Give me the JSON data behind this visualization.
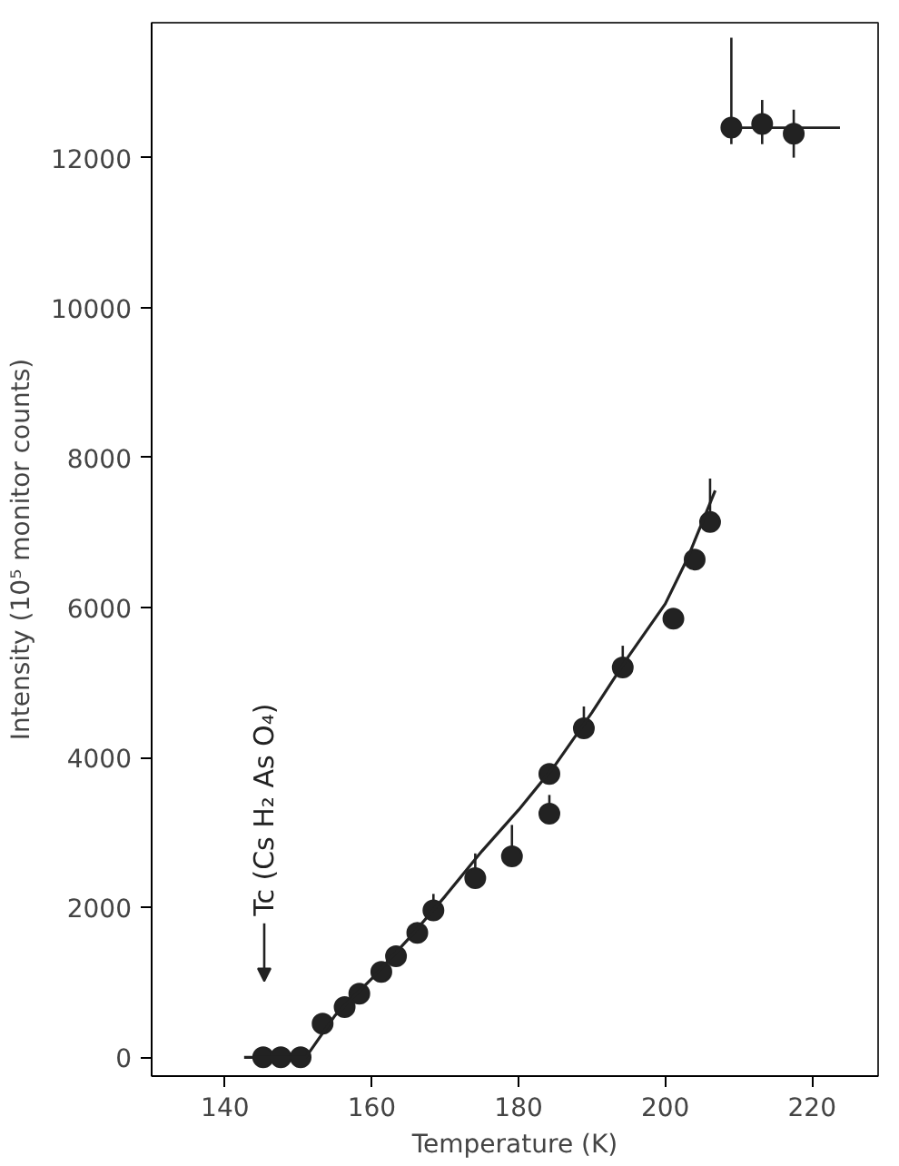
{
  "chart_data": {
    "type": "scatter",
    "xlabel": "Temperature (K)",
    "ylabel": "Intensity (10⁵ monitor counts)",
    "xlim": [
      130,
      229
    ],
    "ylim": [
      -250,
      13800
    ],
    "xticks": [
      140,
      160,
      180,
      200,
      220
    ],
    "yticks": [
      0,
      2000,
      4000,
      6000,
      8000,
      10000,
      12000
    ],
    "grid": false,
    "marker": "circle",
    "annotations": [
      "Tc (Cs H₂ As O₄)"
    ],
    "series": [
      {
        "color": "#222222",
        "x": [
          145.2,
          147.6,
          150.3,
          153.3,
          156.3,
          158.3,
          161.3,
          163.3,
          166.2,
          168.4,
          174.1,
          179.1,
          184.2,
          184.2,
          188.9,
          194.2,
          201.1,
          204.0,
          206.1,
          209.0,
          213.2,
          217.5
        ],
        "values": [
          0,
          0,
          0,
          450,
          670,
          850,
          1140,
          1350,
          1660,
          1960,
          2390,
          2680,
          3250,
          3780,
          4390,
          5200,
          5850,
          6640,
          7140,
          12400,
          12450,
          12320
        ],
        "errors": [
          null,
          null,
          null,
          null,
          null,
          null,
          null,
          null,
          null,
          [
            1960,
            2180
          ],
          [
            2390,
            2720
          ],
          [
            2680,
            3100
          ],
          [
            3250,
            3500
          ],
          null,
          [
            4390,
            4680
          ],
          [
            5200,
            5490
          ],
          null,
          null,
          [
            7140,
            7720
          ],
          [
            12180,
            13600
          ],
          [
            12180,
            12770
          ],
          [
            12000,
            12640
          ]
        ],
        "xerrors": [
          null,
          null,
          null,
          null,
          null,
          null,
          null,
          null,
          null,
          null,
          null,
          null,
          null,
          null,
          null,
          null,
          null,
          null,
          null,
          [
            209.0,
            223.8
          ],
          null,
          null
        ]
      },
      {
        "type": "line",
        "color": "#222222",
        "line_style": "solid",
        "marker": "none",
        "x": [
          142.6,
          151.0,
          155,
          160,
          165,
          170,
          175,
          180,
          185,
          190,
          195,
          200,
          203,
          206.8
        ],
        "values": [
          0,
          0,
          560,
          1050,
          1580,
          2150,
          2750,
          3300,
          3900,
          4600,
          5350,
          6050,
          6650,
          7560
        ]
      }
    ]
  }
}
